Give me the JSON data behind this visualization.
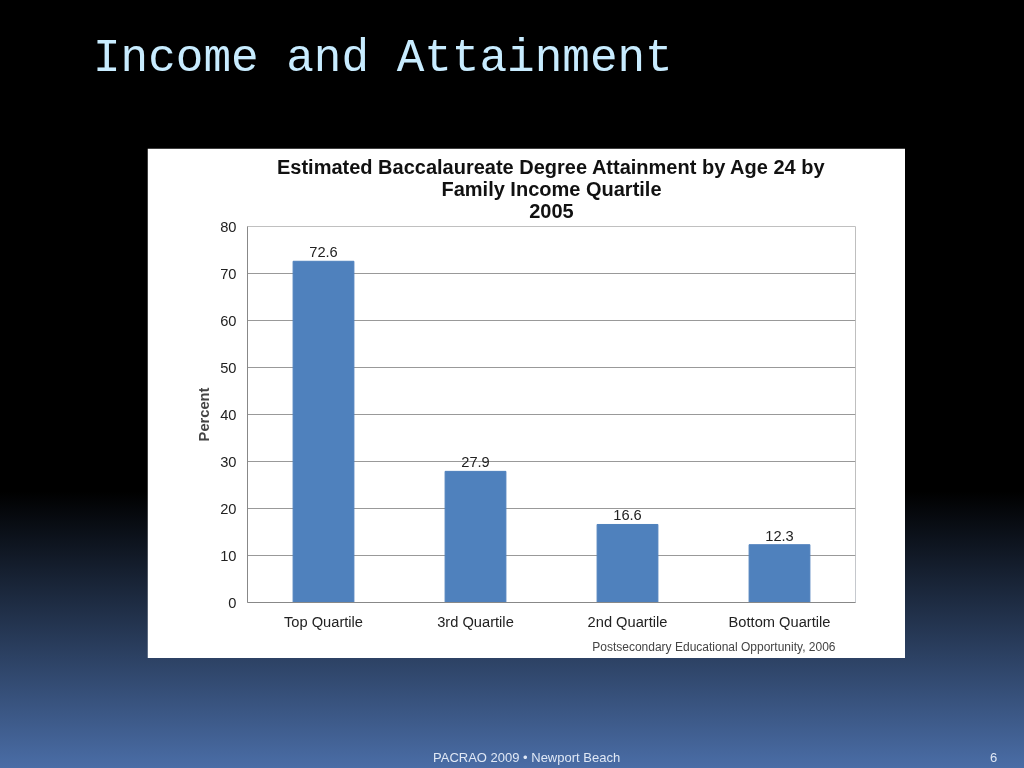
{
  "chart_data": {
    "type": "bar",
    "title": "Estimated Baccalaureate Degree Attainment by Age 24 by\nFamily Income Quartile\n2005",
    "ylabel": "Percent",
    "categories": [
      "Top Quartile",
      "3rd Quartile",
      "2nd Quartile",
      "Bottom Quartile"
    ],
    "values": [
      72.6,
      27.9,
      16.6,
      12.3
    ],
    "color": "#4f81bd",
    "ylim": [
      0,
      80
    ],
    "yticks": [
      0,
      10,
      20,
      30,
      40,
      50,
      60,
      70,
      80
    ],
    "grid": "y",
    "data_labels": true,
    "annotations": [
      "Income and Attainment",
      "Postsecondary Educational Opportunity, 2006",
      "PACRAO 2009 • Newport Beach",
      "6"
    ]
  }
}
